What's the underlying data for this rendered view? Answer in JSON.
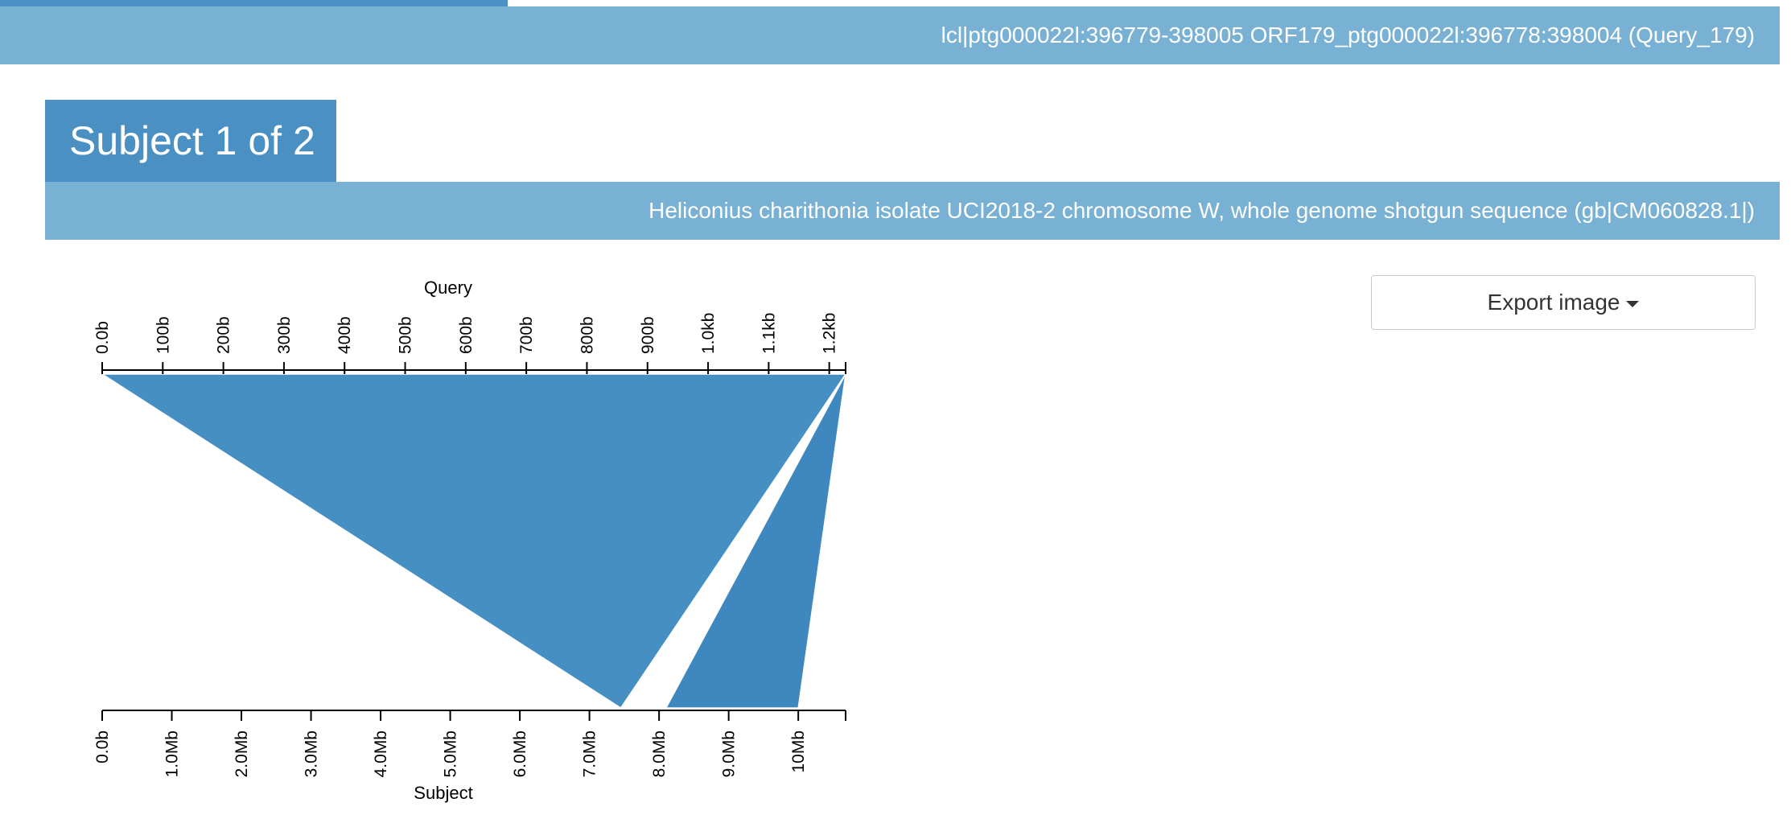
{
  "query_header": {
    "text": "lcl|ptg000022l:396779-398005 ORF179_ptg000022l:396778:398004 (Query_179)"
  },
  "subject": {
    "tab_label": "Subject 1 of 2",
    "description": "Heliconius charithonia isolate UCI2018-2 chromosome W, whole genome shotgun sequence (gb|CM060828.1|)"
  },
  "export_button": {
    "label": "Export image",
    "icon": "caret-down-icon"
  },
  "colors": {
    "accent": "#4a90c2",
    "bar": "#78b1d3",
    "hsp_fill": "#468fc3",
    "hsp_fill_2": "#3f88bf"
  },
  "chart_data": {
    "type": "alignment",
    "query_axis": {
      "label": "Query",
      "range": [
        0,
        1227
      ],
      "unit": "b",
      "ticks": [
        {
          "value": 0,
          "label": "0.0b"
        },
        {
          "value": 100,
          "label": "100b"
        },
        {
          "value": 200,
          "label": "200b"
        },
        {
          "value": 300,
          "label": "300b"
        },
        {
          "value": 400,
          "label": "400b"
        },
        {
          "value": 500,
          "label": "500b"
        },
        {
          "value": 600,
          "label": "600b"
        },
        {
          "value": 700,
          "label": "700b"
        },
        {
          "value": 800,
          "label": "800b"
        },
        {
          "value": 900,
          "label": "900b"
        },
        {
          "value": 1000,
          "label": "1.0kb"
        },
        {
          "value": 1100,
          "label": "1.1kb"
        },
        {
          "value": 1200,
          "label": "1.2kb"
        }
      ]
    },
    "subject_axis": {
      "label": "Subject",
      "range": [
        0,
        10680000
      ],
      "unit": "b",
      "ticks": [
        {
          "value": 0,
          "label": "0.0b"
        },
        {
          "value": 1000000,
          "label": "1.0Mb"
        },
        {
          "value": 2000000,
          "label": "2.0Mb"
        },
        {
          "value": 3000000,
          "label": "3.0Mb"
        },
        {
          "value": 4000000,
          "label": "4.0Mb"
        },
        {
          "value": 5000000,
          "label": "5.0Mb"
        },
        {
          "value": 6000000,
          "label": "6.0Mb"
        },
        {
          "value": 7000000,
          "label": "7.0Mb"
        },
        {
          "value": 8000000,
          "label": "8.0Mb"
        },
        {
          "value": 9000000,
          "label": "9.0Mb"
        },
        {
          "value": 10000000,
          "label": "10Mb"
        }
      ]
    },
    "hsps": [
      {
        "query_start": 0,
        "query_end": 1227,
        "subject_start": 7450000,
        "subject_end": 7450000
      },
      {
        "query_start": 1227,
        "query_end": 1227,
        "subject_start": 8100000,
        "subject_end": 10000000
      }
    ]
  }
}
